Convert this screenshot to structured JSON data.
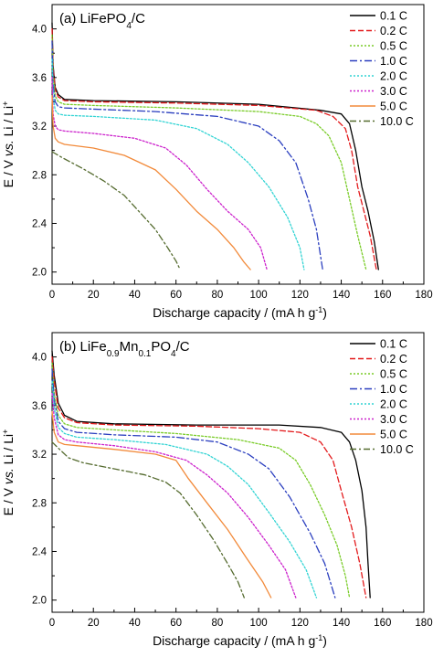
{
  "chart_data": [
    {
      "type": "line",
      "panel_label": "(a) LiFePO",
      "panel_label_sub": "4",
      "panel_label_suffix": "/C",
      "xlabel": "Discharge capacity / (mA h g",
      "xlabel_sup": "-1",
      "xlabel_end": ")",
      "ylabel_parts": [
        "E / V ",
        "vs.",
        " Li / Li",
        "+"
      ],
      "xlim": [
        0,
        180
      ],
      "ylim": [
        1.9,
        4.2
      ],
      "xticks": [
        "0",
        "20",
        "40",
        "60",
        "80",
        "100",
        "120",
        "140",
        "160",
        "180"
      ],
      "yticks": [
        "2.0",
        "2.4",
        "2.8",
        "3.2",
        "3.6",
        "4.0"
      ],
      "legend_position": "top-right",
      "series": [
        {
          "name": "0.1 C",
          "color": "#000000",
          "dash": "solid",
          "points": [
            [
              0,
              4.05
            ],
            [
              0.5,
              3.7
            ],
            [
              1.5,
              3.52
            ],
            [
              3,
              3.46
            ],
            [
              6,
              3.42
            ],
            [
              20,
              3.41
            ],
            [
              60,
              3.4
            ],
            [
              100,
              3.38
            ],
            [
              130,
              3.33
            ],
            [
              140,
              3.3
            ],
            [
              144,
              3.22
            ],
            [
              147,
              3.0
            ],
            [
              150,
              2.7
            ],
            [
              153,
              2.5
            ],
            [
              156,
              2.25
            ],
            [
              158,
              2.02
            ]
          ]
        },
        {
          "name": "0.2 C",
          "color": "#e31a1c",
          "dash": "6,3",
          "points": [
            [
              0,
              4.0
            ],
            [
              0.5,
              3.68
            ],
            [
              1.5,
              3.5
            ],
            [
              3,
              3.44
            ],
            [
              6,
              3.41
            ],
            [
              20,
              3.4
            ],
            [
              60,
              3.39
            ],
            [
              100,
              3.37
            ],
            [
              128,
              3.33
            ],
            [
              136,
              3.28
            ],
            [
              142,
              3.18
            ],
            [
              145,
              3.0
            ],
            [
              148,
              2.7
            ],
            [
              151,
              2.5
            ],
            [
              154,
              2.3
            ],
            [
              157,
              2.02
            ]
          ]
        },
        {
          "name": "0.5 C",
          "color": "#7acc29",
          "dash": "2,2",
          "points": [
            [
              0,
              3.95
            ],
            [
              0.5,
              3.62
            ],
            [
              1.5,
              3.45
            ],
            [
              3,
              3.4
            ],
            [
              6,
              3.38
            ],
            [
              20,
              3.37
            ],
            [
              60,
              3.35
            ],
            [
              100,
              3.32
            ],
            [
              120,
              3.28
            ],
            [
              128,
              3.22
            ],
            [
              134,
              3.12
            ],
            [
              140,
              2.9
            ],
            [
              144,
              2.6
            ],
            [
              148,
              2.3
            ],
            [
              152,
              2.02
            ]
          ]
        },
        {
          "name": "1.0 C",
          "color": "#2b3fbf",
          "dash": "8,3,2,3",
          "points": [
            [
              0,
              3.9
            ],
            [
              0.5,
              3.55
            ],
            [
              1.5,
              3.4
            ],
            [
              3,
              3.36
            ],
            [
              6,
              3.35
            ],
            [
              20,
              3.34
            ],
            [
              50,
              3.32
            ],
            [
              80,
              3.28
            ],
            [
              100,
              3.2
            ],
            [
              110,
              3.08
            ],
            [
              118,
              2.9
            ],
            [
              124,
              2.6
            ],
            [
              128,
              2.35
            ],
            [
              131,
              2.02
            ]
          ]
        },
        {
          "name": "2.0 C",
          "color": "#32d4d4",
          "dash": "2,2",
          "points": [
            [
              0,
              3.75
            ],
            [
              0.5,
              3.45
            ],
            [
              1.5,
              3.33
            ],
            [
              3,
              3.3
            ],
            [
              6,
              3.29
            ],
            [
              20,
              3.28
            ],
            [
              50,
              3.25
            ],
            [
              70,
              3.18
            ],
            [
              85,
              3.05
            ],
            [
              95,
              2.9
            ],
            [
              105,
              2.7
            ],
            [
              114,
              2.45
            ],
            [
              120,
              2.2
            ],
            [
              122,
              2.02
            ]
          ]
        },
        {
          "name": "3.0 C",
          "color": "#cc22cc",
          "dash": "2,2",
          "points": [
            [
              0,
              3.6
            ],
            [
              0.5,
              3.3
            ],
            [
              1.5,
              3.2
            ],
            [
              3,
              3.17
            ],
            [
              6,
              3.16
            ],
            [
              20,
              3.14
            ],
            [
              40,
              3.1
            ],
            [
              55,
              3.02
            ],
            [
              65,
              2.88
            ],
            [
              75,
              2.68
            ],
            [
              85,
              2.5
            ],
            [
              95,
              2.35
            ],
            [
              101,
              2.2
            ],
            [
              104,
              2.02
            ]
          ]
        },
        {
          "name": "5.0 C",
          "color": "#f28a3a",
          "dash": "solid",
          "points": [
            [
              0,
              3.45
            ],
            [
              0.5,
              3.2
            ],
            [
              1.5,
              3.1
            ],
            [
              3,
              3.07
            ],
            [
              6,
              3.05
            ],
            [
              20,
              3.02
            ],
            [
              35,
              2.96
            ],
            [
              50,
              2.84
            ],
            [
              60,
              2.68
            ],
            [
              70,
              2.5
            ],
            [
              80,
              2.35
            ],
            [
              88,
              2.2
            ],
            [
              93,
              2.08
            ],
            [
              96,
              2.02
            ]
          ]
        },
        {
          "name": "10.0 C",
          "color": "#556b2f",
          "dash": "7,3,2,3",
          "points": [
            [
              0,
              2.99
            ],
            [
              5,
              2.94
            ],
            [
              15,
              2.85
            ],
            [
              25,
              2.75
            ],
            [
              35,
              2.63
            ],
            [
              42,
              2.5
            ],
            [
              50,
              2.35
            ],
            [
              56,
              2.2
            ],
            [
              60,
              2.09
            ],
            [
              62,
              2.02
            ]
          ]
        }
      ]
    },
    {
      "type": "line",
      "panel_label": "(b) LiFe",
      "panel_label_sub": "0.9",
      "panel_label_mid": "Mn",
      "panel_label_sub2": "0.1",
      "panel_label_mid2": "PO",
      "panel_label_sub3": "4",
      "panel_label_suffix": "/C",
      "xlabel": "Discharge capacity / (mA h g",
      "xlabel_sup": "-1",
      "xlabel_end": ")",
      "ylabel_parts": [
        "E / V ",
        "vs.",
        " Li / Li",
        "+"
      ],
      "xlim": [
        0,
        180
      ],
      "ylim": [
        1.9,
        4.2
      ],
      "xticks": [
        "0",
        "20",
        "40",
        "60",
        "80",
        "100",
        "120",
        "140",
        "160",
        "180"
      ],
      "yticks": [
        "2.0",
        "2.4",
        "2.8",
        "3.2",
        "3.6",
        "4.0"
      ],
      "legend_position": "top-right",
      "series": [
        {
          "name": "0.1 C",
          "color": "#000000",
          "dash": "solid",
          "points": [
            [
              0,
              4.05
            ],
            [
              1,
              3.85
            ],
            [
              3,
              3.62
            ],
            [
              6,
              3.52
            ],
            [
              12,
              3.47
            ],
            [
              30,
              3.45
            ],
            [
              70,
              3.44
            ],
            [
              110,
              3.44
            ],
            [
              130,
              3.42
            ],
            [
              140,
              3.38
            ],
            [
              144,
              3.3
            ],
            [
              147,
              3.15
            ],
            [
              150,
              2.9
            ],
            [
              152,
              2.6
            ],
            [
              153,
              2.3
            ],
            [
              154,
              2.02
            ]
          ]
        },
        {
          "name": "0.2 C",
          "color": "#e31a1c",
          "dash": "6,3",
          "points": [
            [
              0,
              4.0
            ],
            [
              1,
              3.8
            ],
            [
              3,
              3.58
            ],
            [
              6,
              3.5
            ],
            [
              12,
              3.46
            ],
            [
              30,
              3.44
            ],
            [
              70,
              3.43
            ],
            [
              100,
              3.41
            ],
            [
              120,
              3.38
            ],
            [
              130,
              3.3
            ],
            [
              136,
              3.15
            ],
            [
              140,
              2.9
            ],
            [
              145,
              2.6
            ],
            [
              149,
              2.3
            ],
            [
              152,
              2.02
            ]
          ]
        },
        {
          "name": "0.5 C",
          "color": "#7acc29",
          "dash": "2,2",
          "points": [
            [
              0,
              3.95
            ],
            [
              1,
              3.7
            ],
            [
              3,
              3.52
            ],
            [
              6,
              3.45
            ],
            [
              12,
              3.42
            ],
            [
              30,
              3.4
            ],
            [
              60,
              3.37
            ],
            [
              90,
              3.32
            ],
            [
              110,
              3.25
            ],
            [
              118,
              3.15
            ],
            [
              125,
              2.95
            ],
            [
              132,
              2.7
            ],
            [
              138,
              2.45
            ],
            [
              142,
              2.2
            ],
            [
              144,
              2.02
            ]
          ]
        },
        {
          "name": "1.0 C",
          "color": "#2b3fbf",
          "dash": "8,3,2,3",
          "points": [
            [
              0,
              3.9
            ],
            [
              1,
              3.65
            ],
            [
              3,
              3.47
            ],
            [
              6,
              3.41
            ],
            [
              12,
              3.38
            ],
            [
              30,
              3.36
            ],
            [
              60,
              3.34
            ],
            [
              80,
              3.3
            ],
            [
              95,
              3.2
            ],
            [
              105,
              3.08
            ],
            [
              115,
              2.85
            ],
            [
              125,
              2.55
            ],
            [
              132,
              2.3
            ],
            [
              137,
              2.02
            ]
          ]
        },
        {
          "name": "2.0 C",
          "color": "#32d4d4",
          "dash": "2,2",
          "points": [
            [
              0,
              3.8
            ],
            [
              1,
              3.58
            ],
            [
              3,
              3.42
            ],
            [
              6,
              3.37
            ],
            [
              12,
              3.34
            ],
            [
              30,
              3.32
            ],
            [
              55,
              3.28
            ],
            [
              75,
              3.2
            ],
            [
              85,
              3.1
            ],
            [
              95,
              2.95
            ],
            [
              105,
              2.72
            ],
            [
              115,
              2.48
            ],
            [
              123,
              2.25
            ],
            [
              128,
              2.02
            ]
          ]
        },
        {
          "name": "3.0 C",
          "color": "#cc22cc",
          "dash": "2,2",
          "points": [
            [
              0,
              3.7
            ],
            [
              1,
              3.5
            ],
            [
              3,
              3.36
            ],
            [
              6,
              3.32
            ],
            [
              12,
              3.3
            ],
            [
              30,
              3.27
            ],
            [
              50,
              3.22
            ],
            [
              65,
              3.15
            ],
            [
              75,
              3.03
            ],
            [
              85,
              2.88
            ],
            [
              95,
              2.68
            ],
            [
              105,
              2.45
            ],
            [
              113,
              2.25
            ],
            [
              118,
              2.02
            ]
          ]
        },
        {
          "name": "5.0 C",
          "color": "#f28a3a",
          "dash": "solid",
          "points": [
            [
              0,
              3.55
            ],
            [
              1,
              3.38
            ],
            [
              3,
              3.3
            ],
            [
              6,
              3.28
            ],
            [
              12,
              3.27
            ],
            [
              30,
              3.24
            ],
            [
              50,
              3.2
            ],
            [
              60,
              3.15
            ],
            [
              66,
              3.0
            ],
            [
              75,
              2.8
            ],
            [
              85,
              2.58
            ],
            [
              94,
              2.35
            ],
            [
              102,
              2.15
            ],
            [
              106,
              2.02
            ]
          ]
        },
        {
          "name": "10.0 C",
          "color": "#556b2f",
          "dash": "7,3,2,3",
          "points": [
            [
              0,
              3.3
            ],
            [
              3,
              3.25
            ],
            [
              8,
              3.17
            ],
            [
              15,
              3.13
            ],
            [
              30,
              3.08
            ],
            [
              45,
              3.03
            ],
            [
              55,
              2.97
            ],
            [
              62,
              2.88
            ],
            [
              70,
              2.7
            ],
            [
              78,
              2.5
            ],
            [
              85,
              2.3
            ],
            [
              90,
              2.15
            ],
            [
              93,
              2.02
            ]
          ]
        }
      ]
    }
  ]
}
